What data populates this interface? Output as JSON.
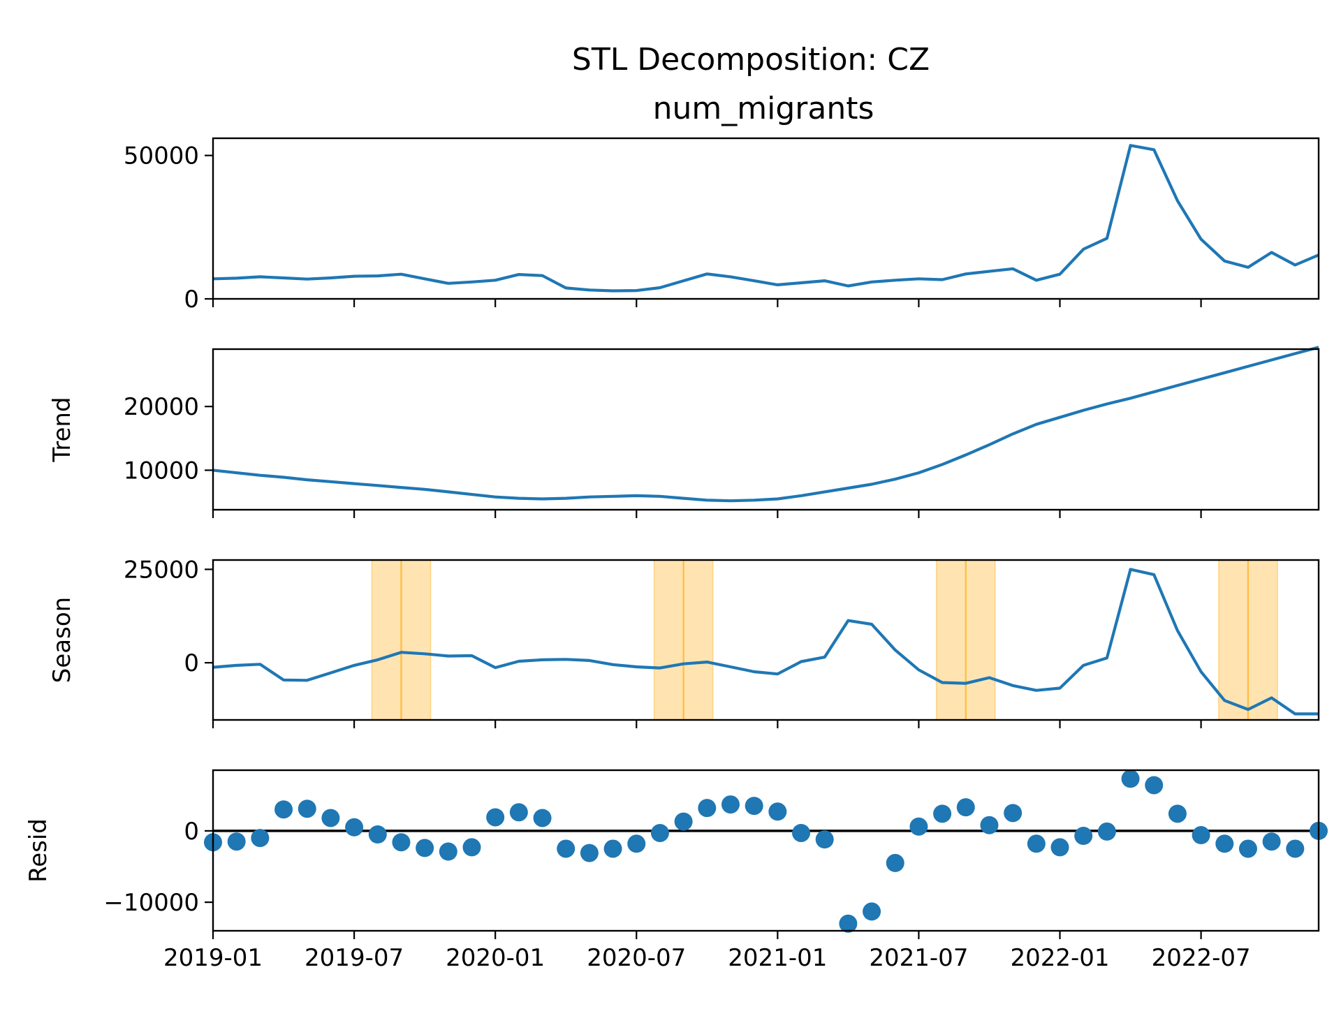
{
  "chart_data": {
    "type": "line",
    "title": "STL Decomposition: CZ",
    "subtitle": "num_migrants",
    "x": [
      "2019-01",
      "2019-02",
      "2019-03",
      "2019-04",
      "2019-05",
      "2019-06",
      "2019-07",
      "2019-08",
      "2019-09",
      "2019-10",
      "2019-11",
      "2019-12",
      "2020-01",
      "2020-02",
      "2020-03",
      "2020-04",
      "2020-05",
      "2020-06",
      "2020-07",
      "2020-08",
      "2020-09",
      "2020-10",
      "2020-11",
      "2020-12",
      "2021-01",
      "2021-02",
      "2021-03",
      "2021-04",
      "2021-05",
      "2021-06",
      "2021-07",
      "2021-08",
      "2021-09",
      "2021-10",
      "2021-11",
      "2021-12",
      "2022-01",
      "2022-02",
      "2022-03",
      "2022-04",
      "2022-05",
      "2022-06",
      "2022-07",
      "2022-08",
      "2022-09",
      "2022-10",
      "2022-11",
      "2022-12"
    ],
    "xticks": [
      "2019-01",
      "2019-07",
      "2020-01",
      "2020-07",
      "2021-01",
      "2021-07",
      "2022-01",
      "2022-07"
    ],
    "xlim": [
      "2019-01",
      "2022-12"
    ],
    "panels": [
      {
        "name": "observed",
        "ylabel": "",
        "type": "line",
        "ylim": [
          0,
          56000
        ],
        "yticks": [
          0,
          50000
        ],
        "yticklabels": [
          "0",
          "50000"
        ],
        "values": [
          7000,
          7200,
          7700,
          7300,
          6900,
          7300,
          7900,
          8000,
          8600,
          7000,
          5400,
          5900,
          6500,
          8500,
          8100,
          3800,
          3100,
          2800,
          2900,
          3900,
          6300,
          8700,
          7700,
          6300,
          4900,
          5600,
          6300,
          4500,
          5900,
          6500,
          7000,
          6700,
          8700,
          9600,
          10500,
          6500,
          8600,
          17300,
          21100,
          53500,
          52000,
          34200,
          20800,
          13200,
          11000,
          16200,
          11800,
          15300
        ]
      },
      {
        "name": "trend",
        "ylabel": "Trend",
        "type": "line",
        "ylim": [
          3800,
          29000
        ],
        "yticks": [
          10000,
          20000
        ],
        "yticklabels": [
          "10000",
          "20000"
        ],
        "values": [
          10000,
          9600,
          9200,
          8900,
          8500,
          8200,
          7900,
          7600,
          7300,
          7000,
          6600,
          6200,
          5800,
          5600,
          5500,
          5600,
          5800,
          5900,
          6000,
          5900,
          5600,
          5300,
          5200,
          5300,
          5500,
          6000,
          6600,
          7200,
          7800,
          8600,
          9600,
          10900,
          12400,
          14000,
          15700,
          17200,
          18300,
          19400,
          20400,
          21300,
          22300,
          23300,
          24300,
          25300,
          26300,
          27300,
          28300,
          29300
        ]
      },
      {
        "name": "season",
        "ylabel": "Season",
        "type": "line",
        "ylim": [
          -15300,
          27500
        ],
        "yticks": [
          0,
          25000
        ],
        "yticklabels": [
          "0",
          "25000"
        ],
        "values": [
          -1200,
          -700,
          -400,
          -4600,
          -4700,
          -2700,
          -700,
          800,
          2800,
          2400,
          1800,
          1900,
          -1300,
          400,
          800,
          900,
          600,
          -500,
          -1100,
          -1400,
          -300,
          200,
          -1100,
          -2400,
          -3000,
          300,
          1500,
          11300,
          10300,
          3400,
          -1900,
          -5300,
          -5500,
          -4000,
          -6100,
          -7400,
          -6800,
          -700,
          1300,
          25000,
          23600,
          8600,
          -2400,
          -10100,
          -12500,
          -9400,
          -13700,
          -13700
        ]
      },
      {
        "name": "resid",
        "ylabel": "Resid",
        "type": "scatter",
        "ylim": [
          -14000,
          8500
        ],
        "yticks": [
          -10000,
          0
        ],
        "yticklabels": [
          "−10000",
          "0"
        ],
        "values": [
          -1600,
          -1500,
          -1000,
          3000,
          3100,
          1800,
          500,
          -500,
          -1600,
          -2400,
          -2900,
          -2300,
          1900,
          2600,
          1800,
          -2500,
          -3100,
          -2500,
          -1800,
          -300,
          1300,
          3200,
          3700,
          3500,
          2700,
          -300,
          -1200,
          -13000,
          -11300,
          -4500,
          600,
          2400,
          3300,
          800,
          2500,
          -1800,
          -2300,
          -700,
          -100,
          7300,
          6400,
          2400,
          -600,
          -1800,
          -2500,
          -1500,
          -2500,
          0
        ]
      }
    ],
    "highlight_bands": [
      {
        "start": "2019-08",
        "end": "2019-10",
        "center": "2019-09"
      },
      {
        "start": "2020-08",
        "end": "2020-10",
        "center": "2020-09"
      },
      {
        "start": "2021-08",
        "end": "2021-10",
        "center": "2021-09"
      },
      {
        "start": "2022-08",
        "end": "2022-10",
        "center": "2022-09"
      }
    ],
    "colors": {
      "series": "#1f77b4",
      "band": "#ffa500",
      "zero_line": "#000000"
    },
    "grid": false
  }
}
